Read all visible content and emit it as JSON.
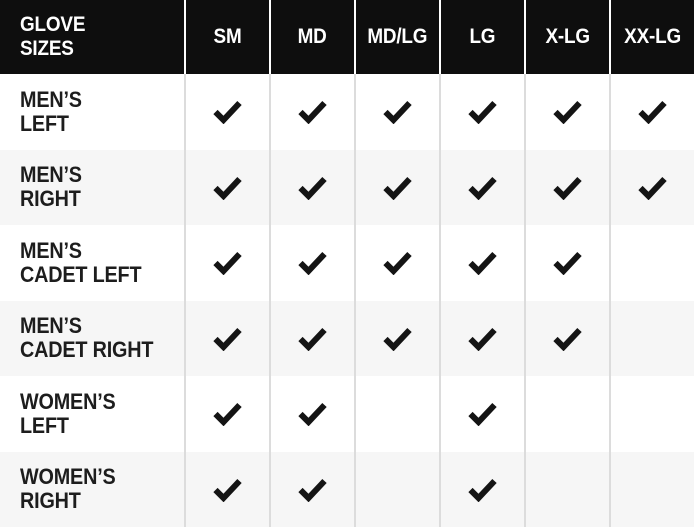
{
  "colors": {
    "header_bg": "#0e0e0e",
    "header_text": "#ffffff",
    "row_text": "#1d1d1d",
    "alt_row_bg": "#f6f6f6",
    "divider": "#dcdcdc",
    "header_divider": "#ffffff",
    "check": "#141414"
  },
  "table": {
    "header": {
      "title": [
        "GLOVE",
        "SIZES"
      ],
      "columns": [
        "SM",
        "MD",
        "MD/LG",
        "LG",
        "X-LG",
        "XX-LG"
      ]
    },
    "rows": [
      {
        "label": [
          "MEN’S",
          "LEFT"
        ],
        "checks": [
          true,
          true,
          true,
          true,
          true,
          true
        ]
      },
      {
        "label": [
          "MEN’S",
          "RIGHT"
        ],
        "checks": [
          true,
          true,
          true,
          true,
          true,
          true
        ]
      },
      {
        "label": [
          "MEN’S",
          "CADET LEFT"
        ],
        "checks": [
          true,
          true,
          true,
          true,
          true,
          false
        ]
      },
      {
        "label": [
          "MEN’S",
          "CADET RIGHT"
        ],
        "checks": [
          true,
          true,
          true,
          true,
          true,
          false
        ]
      },
      {
        "label": [
          "WOMEN’S",
          "LEFT"
        ],
        "checks": [
          true,
          true,
          false,
          true,
          false,
          false
        ]
      },
      {
        "label": [
          "WOMEN’S",
          "RIGHT"
        ],
        "checks": [
          true,
          true,
          false,
          true,
          false,
          false
        ]
      }
    ],
    "check_icon": "checkmark"
  },
  "chart_data": {
    "type": "table",
    "title": "GLOVE SIZES",
    "columns": [
      "SM",
      "MD",
      "MD/LG",
      "LG",
      "X-LG",
      "XX-LG"
    ],
    "rows": [
      {
        "label": "MEN’S LEFT",
        "available": [
          "SM",
          "MD",
          "MD/LG",
          "LG",
          "X-LG",
          "XX-LG"
        ]
      },
      {
        "label": "MEN’S RIGHT",
        "available": [
          "SM",
          "MD",
          "MD/LG",
          "LG",
          "X-LG",
          "XX-LG"
        ]
      },
      {
        "label": "MEN’S CADET LEFT",
        "available": [
          "SM",
          "MD",
          "MD/LG",
          "LG",
          "X-LG"
        ]
      },
      {
        "label": "MEN’S CADET RIGHT",
        "available": [
          "SM",
          "MD",
          "MD/LG",
          "LG",
          "X-LG"
        ]
      },
      {
        "label": "WOMEN’S LEFT",
        "available": [
          "SM",
          "MD",
          "LG"
        ]
      },
      {
        "label": "WOMEN’S RIGHT",
        "available": [
          "SM",
          "MD",
          "LG"
        ]
      }
    ]
  }
}
